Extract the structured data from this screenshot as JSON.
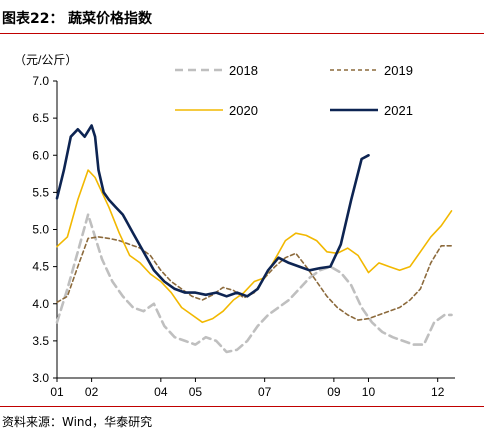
{
  "header": {
    "label": "图表22：",
    "title": "蔬菜价格指数"
  },
  "source": "资料来源：Wind，华泰研究",
  "chart_data": {
    "type": "line",
    "title": "蔬菜价格指数",
    "ylabel": "（元/公斤）",
    "xlabel": "",
    "ylim": [
      3.0,
      7.0
    ],
    "yticks": [
      "3.0",
      "3.5",
      "4.0",
      "4.5",
      "5.0",
      "5.5",
      "6.0",
      "6.5",
      "7.0"
    ],
    "xticks": [
      "01",
      "02",
      "04",
      "05",
      "07",
      "09",
      "10",
      "12"
    ],
    "legend_placement": "top",
    "grid": false,
    "series": [
      {
        "name": "2018",
        "color": "#bfbfbf",
        "style": "dashed",
        "x": [
          1,
          1.3,
          1.6,
          1.9,
          2.1,
          2.3,
          2.6,
          2.9,
          3.2,
          3.5,
          3.8,
          4.1,
          4.4,
          4.7,
          5.0,
          5.3,
          5.6,
          5.9,
          6.2,
          6.5,
          6.8,
          7.1,
          7.4,
          7.7,
          8.0,
          8.3,
          8.6,
          8.9,
          9.2,
          9.5,
          9.8,
          10.1,
          10.4,
          10.7,
          11.0,
          11.3,
          11.6,
          11.9,
          12.2,
          12.4
        ],
        "y": [
          3.75,
          4.2,
          4.7,
          5.2,
          4.9,
          4.6,
          4.3,
          4.1,
          3.95,
          3.9,
          4.0,
          3.7,
          3.55,
          3.5,
          3.45,
          3.55,
          3.5,
          3.35,
          3.38,
          3.5,
          3.7,
          3.85,
          3.95,
          4.05,
          4.2,
          4.35,
          4.45,
          4.5,
          4.42,
          4.25,
          3.95,
          3.75,
          3.62,
          3.55,
          3.5,
          3.45,
          3.45,
          3.75,
          3.85,
          3.85
        ]
      },
      {
        "name": "2019",
        "color": "#8c6a3c",
        "style": "dashed",
        "x": [
          1,
          1.3,
          1.6,
          1.9,
          2.2,
          2.5,
          2.8,
          3.1,
          3.4,
          3.7,
          4.0,
          4.3,
          4.6,
          4.9,
          5.2,
          5.5,
          5.8,
          6.1,
          6.4,
          6.7,
          7.0,
          7.3,
          7.6,
          7.9,
          8.2,
          8.5,
          8.8,
          9.1,
          9.4,
          9.7,
          10.0,
          10.3,
          10.6,
          10.9,
          11.2,
          11.5,
          11.8,
          12.1,
          12.4
        ],
        "y": [
          4.02,
          4.1,
          4.5,
          4.88,
          4.9,
          4.88,
          4.85,
          4.8,
          4.75,
          4.65,
          4.45,
          4.3,
          4.2,
          4.1,
          4.05,
          4.12,
          4.22,
          4.18,
          4.08,
          4.15,
          4.35,
          4.5,
          4.62,
          4.68,
          4.5,
          4.3,
          4.1,
          3.95,
          3.85,
          3.78,
          3.8,
          3.85,
          3.9,
          3.95,
          4.05,
          4.2,
          4.55,
          4.78,
          4.78
        ]
      },
      {
        "name": "2020",
        "color": "#f2b800",
        "style": "solid",
        "x": [
          1,
          1.3,
          1.6,
          1.9,
          2.1,
          2.3,
          2.5,
          2.8,
          3.1,
          3.4,
          3.7,
          4.0,
          4.3,
          4.6,
          4.9,
          5.2,
          5.5,
          5.8,
          6.1,
          6.4,
          6.7,
          7.0,
          7.3,
          7.6,
          7.9,
          8.2,
          8.5,
          8.8,
          9.1,
          9.4,
          9.7,
          10.0,
          10.3,
          10.6,
          10.9,
          11.2,
          11.5,
          11.8,
          12.1,
          12.4
        ],
        "y": [
          4.77,
          4.9,
          5.4,
          5.8,
          5.7,
          5.5,
          5.3,
          4.95,
          4.65,
          4.55,
          4.4,
          4.3,
          4.15,
          3.95,
          3.85,
          3.75,
          3.8,
          3.9,
          4.05,
          4.15,
          4.3,
          4.35,
          4.6,
          4.85,
          4.95,
          4.92,
          4.85,
          4.7,
          4.68,
          4.75,
          4.65,
          4.42,
          4.55,
          4.5,
          4.45,
          4.5,
          4.7,
          4.9,
          5.05,
          5.25
        ]
      },
      {
        "name": "2021",
        "color": "#0d2452",
        "style": "solid",
        "x": [
          1,
          1.2,
          1.4,
          1.6,
          1.8,
          2.0,
          2.1,
          2.2,
          2.35,
          2.5,
          2.7,
          2.9,
          3.2,
          3.5,
          3.8,
          4.1,
          4.4,
          4.7,
          5.0,
          5.3,
          5.6,
          5.9,
          6.2,
          6.5,
          6.8,
          7.1,
          7.4,
          7.7,
          8.0,
          8.3,
          8.6,
          8.9,
          9.2,
          9.5,
          9.8,
          10.0
        ],
        "y": [
          5.42,
          5.8,
          6.25,
          6.35,
          6.25,
          6.4,
          6.25,
          5.8,
          5.5,
          5.4,
          5.3,
          5.2,
          4.95,
          4.7,
          4.45,
          4.3,
          4.2,
          4.15,
          4.15,
          4.12,
          4.15,
          4.1,
          4.15,
          4.1,
          4.2,
          4.45,
          4.62,
          4.55,
          4.5,
          4.45,
          4.48,
          4.5,
          4.8,
          5.4,
          5.95,
          6.0
        ]
      }
    ]
  }
}
